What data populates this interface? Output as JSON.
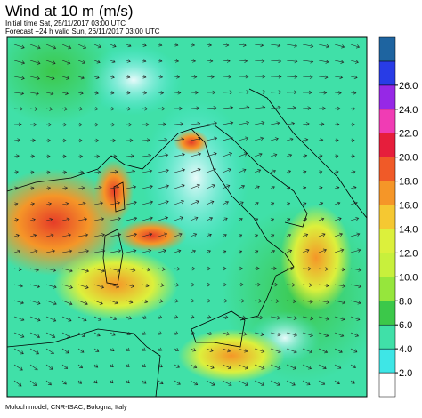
{
  "header": {
    "title": "Wind at 10 m (m/s)",
    "initial_time": "Initial time  Sat, 25/11/2017 03:00 UTC",
    "forecast": "Forecast +24 h valid  Sun, 26/11/2017 03:00 UTC"
  },
  "footer": "Moloch model, CNR-ISAC, Bologna, Italy",
  "legend": {
    "colors": [
      "#ffffff",
      "#3ee6e6",
      "#40e0a8",
      "#3cc84a",
      "#96e63c",
      "#c8f03c",
      "#dcf03c",
      "#f5c832",
      "#f59628",
      "#f05a28",
      "#e61e3c",
      "#f03cb4",
      "#9628e6",
      "#283ce6",
      "#1e64a0"
    ],
    "labels": [
      "2.0",
      "4.0",
      "6.0",
      "8.0",
      "10.0",
      "12.0",
      "14.0",
      "16.0",
      "18.0",
      "20.0",
      "22.0",
      "24.0",
      "26.0"
    ]
  }
}
